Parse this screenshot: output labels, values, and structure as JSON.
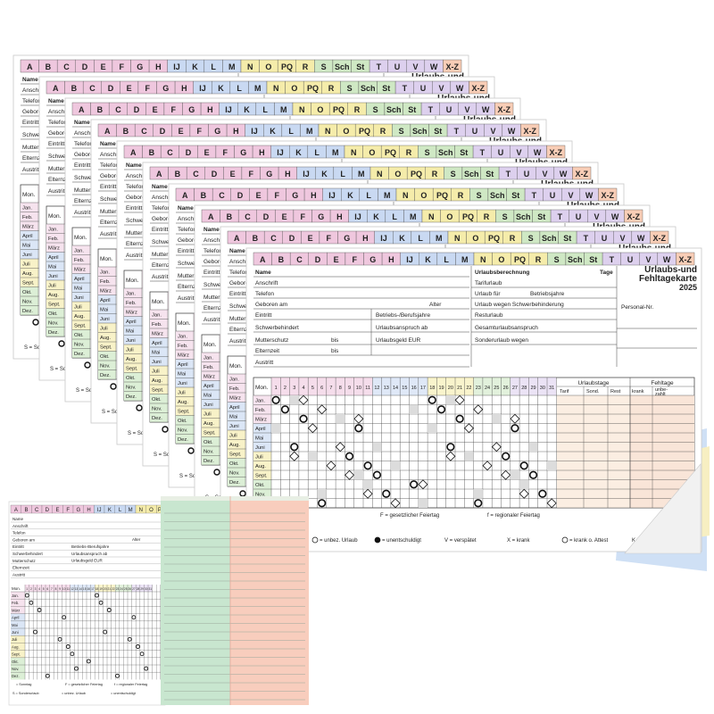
{
  "tabs": [
    "A",
    "B",
    "C",
    "D",
    "E",
    "F",
    "G",
    "H",
    "IJ",
    "K",
    "L",
    "M",
    "N",
    "O",
    "PQ",
    "R",
    "S",
    "Sch",
    "St",
    "T",
    "U",
    "V",
    "W",
    "X-Z"
  ],
  "card": {
    "title": [
      "Urlaubs-und",
      "Fehltagekarte",
      "2025"
    ],
    "personal_nr": "Personal-Nr.",
    "left_fields": [
      "Name",
      "Anschrift",
      "Telefon",
      "Geboren am",
      "Eintritt",
      "Schwerbehindert",
      "Mutterschutz",
      "Elternzeit",
      "Austritt"
    ],
    "alter": "Alter",
    "bis": "bis",
    "mid_fields": [
      "Betriebs-/Berufsjahre",
      "Urlaubsanspruch ab",
      "Urlaubsgeld EUR"
    ],
    "calc_title": "Urlaubsberechnung",
    "calc_days": "Tage",
    "calc_rows": [
      "Tarifurlaub",
      "Urlaub für",
      "Urlaub wegen Schwerbehinderung",
      "Resturlaub",
      "Gesamturlaubsanspruch",
      "Sonderurlaub wegen"
    ],
    "calc_extra": "Betriebsjahre",
    "month_header": "Mon.",
    "days": [
      1,
      2,
      3,
      4,
      5,
      6,
      7,
      8,
      9,
      10,
      11,
      12,
      13,
      14,
      15,
      16,
      17,
      18,
      19,
      20,
      21,
      22,
      23,
      24,
      25,
      26,
      27,
      28,
      29,
      30,
      31
    ],
    "months": [
      "Jan.",
      "Feb.",
      "März",
      "April",
      "Mai",
      "Juni",
      "Juli",
      "Aug.",
      "Sept.",
      "Okt.",
      "Nov.",
      "Dez."
    ],
    "vacation_header": "Urlaubstage",
    "vacation_cols": [
      "Tarif",
      "Sond.",
      "Rest"
    ],
    "absence_header": "Fehltage",
    "absence_cols": [
      "krank",
      [
        "unbe-",
        "zahlt"
      ]
    ],
    "legend": [
      "= Sonntag",
      "F = gesetzlicher Feiertag",
      "f = regionaler Feiertag",
      "S = Sonderurlaub",
      "= unbez. Urlaub",
      "= unentschuldigt",
      "V = verspätet",
      "X = krank",
      "= krank o. Attest",
      "K = Kur"
    ]
  }
}
